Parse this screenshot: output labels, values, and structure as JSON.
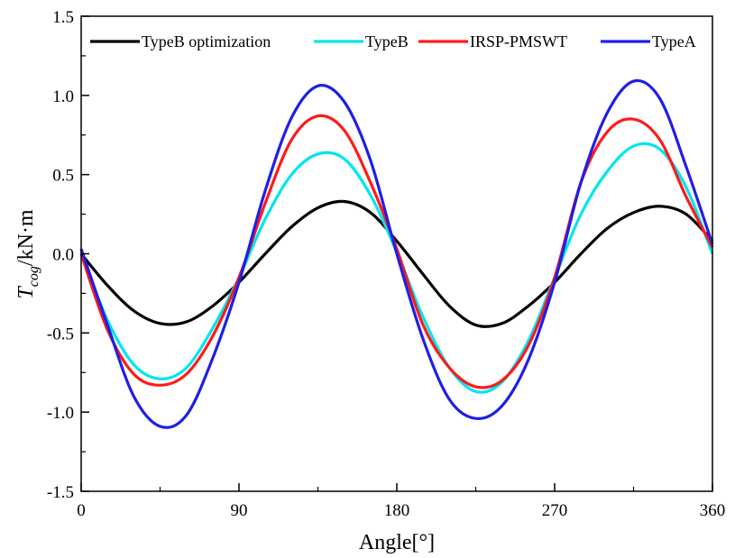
{
  "chart_data": {
    "type": "line",
    "title": "",
    "xlabel": "Angle[°]",
    "ylabel_main": "T",
    "ylabel_sub": "cog",
    "ylabel_unit": "/kN·m",
    "xlim": [
      0,
      360
    ],
    "ylim": [
      -1.5,
      1.5
    ],
    "xticks": [
      0,
      90,
      180,
      270,
      360
    ],
    "xtick_labels": [
      "0",
      "90",
      "180",
      "270",
      "360"
    ],
    "yticks": [
      -1.5,
      -1.0,
      -0.5,
      0.0,
      0.5,
      1.0,
      1.5
    ],
    "ytick_labels": [
      "-1.5",
      "-1.0",
      "-0.5",
      "0.0",
      "0.5",
      "1.0",
      "1.5"
    ],
    "grid": false,
    "legend_position": "top",
    "series": [
      {
        "name": "TypeB optimization",
        "color": "#000000",
        "x": [
          0,
          15,
          30,
          45,
          60,
          75,
          90,
          105,
          120,
          135,
          150,
          165,
          180,
          195,
          210,
          225,
          240,
          255,
          270,
          285,
          300,
          315,
          330,
          345,
          360
        ],
        "y": [
          0.0,
          -0.2,
          -0.36,
          -0.44,
          -0.43,
          -0.33,
          -0.18,
          0.0,
          0.17,
          0.29,
          0.33,
          0.26,
          0.08,
          -0.13,
          -0.33,
          -0.45,
          -0.44,
          -0.33,
          -0.18,
          0.0,
          0.16,
          0.26,
          0.3,
          0.25,
          0.08
        ]
      },
      {
        "name": "TypeB",
        "color": "#00e5ee",
        "x": [
          0,
          15,
          30,
          45,
          60,
          75,
          90,
          105,
          120,
          135,
          150,
          165,
          180,
          195,
          210,
          225,
          240,
          255,
          270,
          285,
          300,
          315,
          330,
          345,
          360
        ],
        "y": [
          0.0,
          -0.42,
          -0.7,
          -0.79,
          -0.72,
          -0.47,
          -0.15,
          0.22,
          0.5,
          0.63,
          0.6,
          0.37,
          0.01,
          -0.4,
          -0.72,
          -0.87,
          -0.81,
          -0.55,
          -0.15,
          0.25,
          0.52,
          0.68,
          0.66,
          0.42,
          0.0
        ]
      },
      {
        "name": "IRSP-PMSWT",
        "color": "#ff1a1a",
        "x": [
          0,
          15,
          30,
          45,
          60,
          75,
          90,
          105,
          120,
          135,
          150,
          165,
          180,
          195,
          210,
          225,
          240,
          255,
          270,
          285,
          300,
          315,
          330,
          345,
          360
        ],
        "y": [
          0.0,
          -0.48,
          -0.76,
          -0.83,
          -0.76,
          -0.52,
          -0.15,
          0.32,
          0.72,
          0.87,
          0.78,
          0.45,
          0.03,
          -0.45,
          -0.72,
          -0.84,
          -0.8,
          -0.58,
          -0.15,
          0.45,
          0.77,
          0.85,
          0.72,
          0.36,
          0.04
        ]
      },
      {
        "name": "TypeA",
        "color": "#1f1fe6",
        "x": [
          0,
          15,
          30,
          45,
          60,
          75,
          90,
          105,
          120,
          135,
          150,
          165,
          180,
          195,
          210,
          225,
          240,
          255,
          270,
          285,
          300,
          315,
          330,
          345,
          360
        ],
        "y": [
          0.03,
          -0.45,
          -0.9,
          -1.09,
          -1.02,
          -0.66,
          -0.18,
          0.4,
          0.86,
          1.06,
          0.96,
          0.59,
          0.0,
          -0.54,
          -0.92,
          -1.04,
          -0.96,
          -0.67,
          -0.18,
          0.45,
          0.89,
          1.09,
          0.98,
          0.55,
          0.06
        ]
      }
    ]
  }
}
